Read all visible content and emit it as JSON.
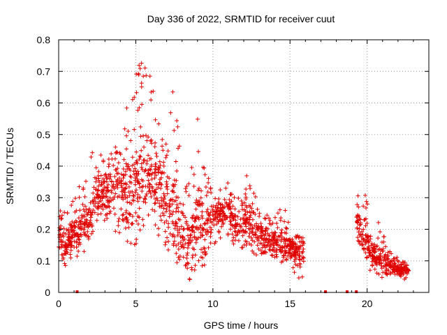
{
  "chart_data": {
    "type": "scatter",
    "title": "Day 336 of 2022, SRMTID for receiver cuut",
    "xlabel": "GPS time / hours",
    "ylabel": "SRMTID / TECUs",
    "xlim": [
      0,
      24
    ],
    "ylim": [
      0,
      0.8
    ],
    "x_ticks": [
      0,
      5,
      10,
      15,
      20
    ],
    "x_tick_labels": [
      "0",
      "5",
      "10",
      "15",
      "20"
    ],
    "y_ticks": [
      0,
      0.1,
      0.2,
      0.3,
      0.4,
      0.5,
      0.6,
      0.7,
      0.8
    ],
    "y_tick_labels": [
      "0",
      "0.1",
      "0.2",
      "0.3",
      "0.4",
      "0.5",
      "0.6",
      "0.7",
      "0.8"
    ],
    "grid": true,
    "color": "#e00000",
    "series": [
      {
        "name": "SRMTID",
        "marker": "plus",
        "envelope_hours": [
          0.0,
          0.5,
          1.0,
          1.5,
          2.0,
          2.5,
          3.0,
          3.5,
          4.0,
          4.5,
          5.0,
          5.5,
          6.0,
          6.5,
          7.0,
          7.5,
          8.0,
          8.5,
          9.0,
          9.5,
          10.0,
          10.5,
          11.0,
          11.5,
          12.0,
          12.5,
          13.0,
          13.5,
          14.0,
          14.5,
          15.0,
          15.5,
          15.9,
          19.3,
          19.8,
          20.3,
          20.8,
          21.3,
          21.8,
          22.3,
          22.7
        ],
        "mean_values": [
          0.18,
          0.15,
          0.2,
          0.22,
          0.24,
          0.31,
          0.31,
          0.33,
          0.36,
          0.3,
          0.34,
          0.39,
          0.38,
          0.33,
          0.3,
          0.27,
          0.2,
          0.15,
          0.22,
          0.2,
          0.24,
          0.25,
          0.26,
          0.2,
          0.24,
          0.22,
          0.19,
          0.17,
          0.16,
          0.16,
          0.15,
          0.13,
          0.12,
          0.22,
          0.18,
          0.12,
          0.11,
          0.09,
          0.08,
          0.07,
          0.07
        ],
        "max_values": [
          0.28,
          0.26,
          0.32,
          0.36,
          0.45,
          0.48,
          0.42,
          0.45,
          0.49,
          0.62,
          0.72,
          0.74,
          0.68,
          0.57,
          0.48,
          0.68,
          0.43,
          0.34,
          0.58,
          0.4,
          0.32,
          0.33,
          0.36,
          0.3,
          0.41,
          0.33,
          0.28,
          0.25,
          0.24,
          0.28,
          0.23,
          0.19,
          0.17,
          0.3,
          0.33,
          0.22,
          0.23,
          0.15,
          0.12,
          0.1,
          0.09
        ],
        "min_values": [
          0.09,
          0.08,
          0.12,
          0.1,
          0.15,
          0.2,
          0.2,
          0.19,
          0.18,
          0.16,
          0.14,
          0.2,
          0.24,
          0.17,
          0.13,
          0.1,
          0.05,
          0.04,
          0.08,
          0.08,
          0.14,
          0.16,
          0.18,
          0.12,
          0.14,
          0.1,
          0.07,
          0.09,
          0.09,
          0.08,
          0.07,
          0.04,
          0.04,
          0.13,
          0.1,
          0.06,
          0.05,
          0.04,
          0.04,
          0.04,
          0.04
        ],
        "zero_markers_hours": [
          1.2,
          17.3,
          18.7,
          19.3
        ]
      }
    ]
  }
}
